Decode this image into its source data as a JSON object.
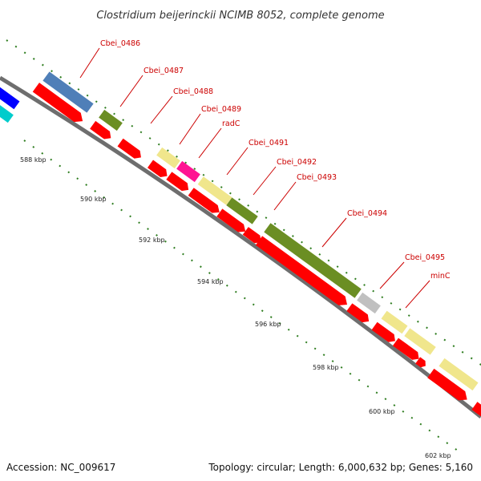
{
  "title": "Clostridium beijerinckii NCIMB 8052, complete genome",
  "footer": {
    "accession": "Accession: NC_009617",
    "summary": "Topology: circular; Length: 6,000,632 bp; Genes: 5,160"
  },
  "scale_labels": [
    "588 kbp",
    "590 kbp",
    "592 kbp",
    "594 kbp",
    "596 kbp",
    "598 kbp",
    "600 kbp",
    "602 kbp"
  ],
  "gene_labels": [
    "Cbei_0486",
    "Cbei_0487",
    "Cbei_0488",
    "Cbei_0489",
    "radC",
    "Cbei_0491",
    "Cbei_0492",
    "Cbei_0493",
    "Cbei_0494",
    "Cbei_0495",
    "minC"
  ],
  "colors": {
    "label": "#cc0000",
    "backbone": "#808080",
    "cds": "#ff0000",
    "green_feature": "#6b8e23",
    "steelblue_feature": "#4f7fb8",
    "khaki_feature": "#f0e68c",
    "magenta_feature": "#ff1493",
    "grey_feature": "#c0c0c0",
    "blue_feature": "#0000ff",
    "cyan_feature": "#00cccc",
    "tick": "#2e7d1f"
  }
}
